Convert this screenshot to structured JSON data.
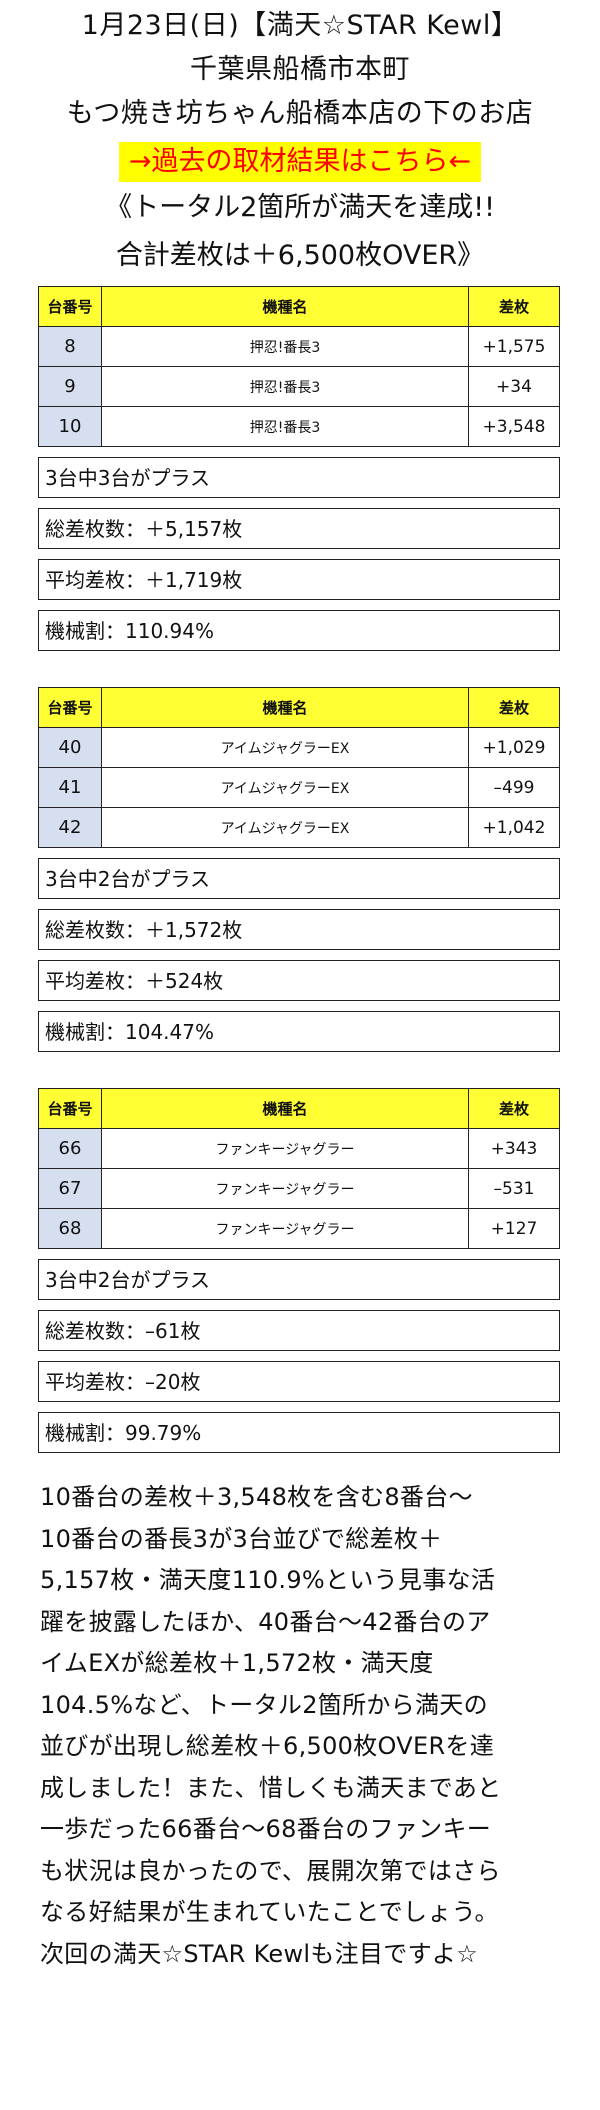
{
  "header": {
    "line1": "1月23日(日)【満天☆STAR Kewl】",
    "line2": "千葉県船橋市本町",
    "line3": "もつ焼き坊ちゃん船橋本店の下のお店",
    "link": "→過去の取材結果はこちら←",
    "headline1": "《トータル2箇所が満天を達成!!",
    "headline2": "合計差枚は＋6,500枚OVER》"
  },
  "columns": {
    "num": "台番号",
    "name": "機種名",
    "diff": "差枚"
  },
  "groups": [
    {
      "rows": [
        {
          "num": "8",
          "name": "押忍!番長3",
          "diff": "+1,575"
        },
        {
          "num": "9",
          "name": "押忍!番長3",
          "diff": "+34"
        },
        {
          "num": "10",
          "name": "押忍!番長3",
          "diff": "+3,548"
        }
      ],
      "stats": [
        "3台中3台がプラス",
        "総差枚数：＋5,157枚",
        "平均差枚：＋1,719枚",
        "機械割：110.94%"
      ]
    },
    {
      "rows": [
        {
          "num": "40",
          "name": "アイムジャグラーEX",
          "diff": "+1,029"
        },
        {
          "num": "41",
          "name": "アイムジャグラーEX",
          "diff": "–499"
        },
        {
          "num": "42",
          "name": "アイムジャグラーEX",
          "diff": "+1,042"
        }
      ],
      "stats": [
        "3台中2台がプラス",
        "総差枚数：＋1,572枚",
        "平均差枚：＋524枚",
        "機械割：104.47%"
      ]
    },
    {
      "rows": [
        {
          "num": "66",
          "name": "ファンキージャグラー",
          "diff": "+343"
        },
        {
          "num": "67",
          "name": "ファンキージャグラー",
          "diff": "–531"
        },
        {
          "num": "68",
          "name": "ファンキージャグラー",
          "diff": "+127"
        }
      ],
      "stats": [
        "3台中2台がプラス",
        "総差枚数：–61枚",
        "平均差枚：–20枚",
        "機械割：99.79%"
      ]
    }
  ],
  "body": [
    "10番台の差枚＋3,548枚を含む8番台〜",
    "10番台の番長3が3台並びで総差枚＋",
    "5,157枚・満天度110.9%という見事な活",
    "躍を披露したほか、40番台〜42番台のア",
    "イムEXが総差枚＋1,572枚・満天度",
    "104.5%など、トータル2箇所から満天の",
    "並びが出現し総差枚＋6,500枚OVERを達",
    "成しました！また、惜しくも満天まであと",
    "一歩だった66番台〜68番台のファンキー",
    "も状況は良かったので、展開次第ではさら",
    "なる好結果が生まれていたことでしょう。",
    "次回の満天☆STAR Kewlも注目ですよ☆"
  ],
  "colors": {
    "header_yellow": "#ffff33",
    "link_bg": "#ffff00",
    "link_text": "#ff0000",
    "num_cell": "#d6dff0"
  }
}
